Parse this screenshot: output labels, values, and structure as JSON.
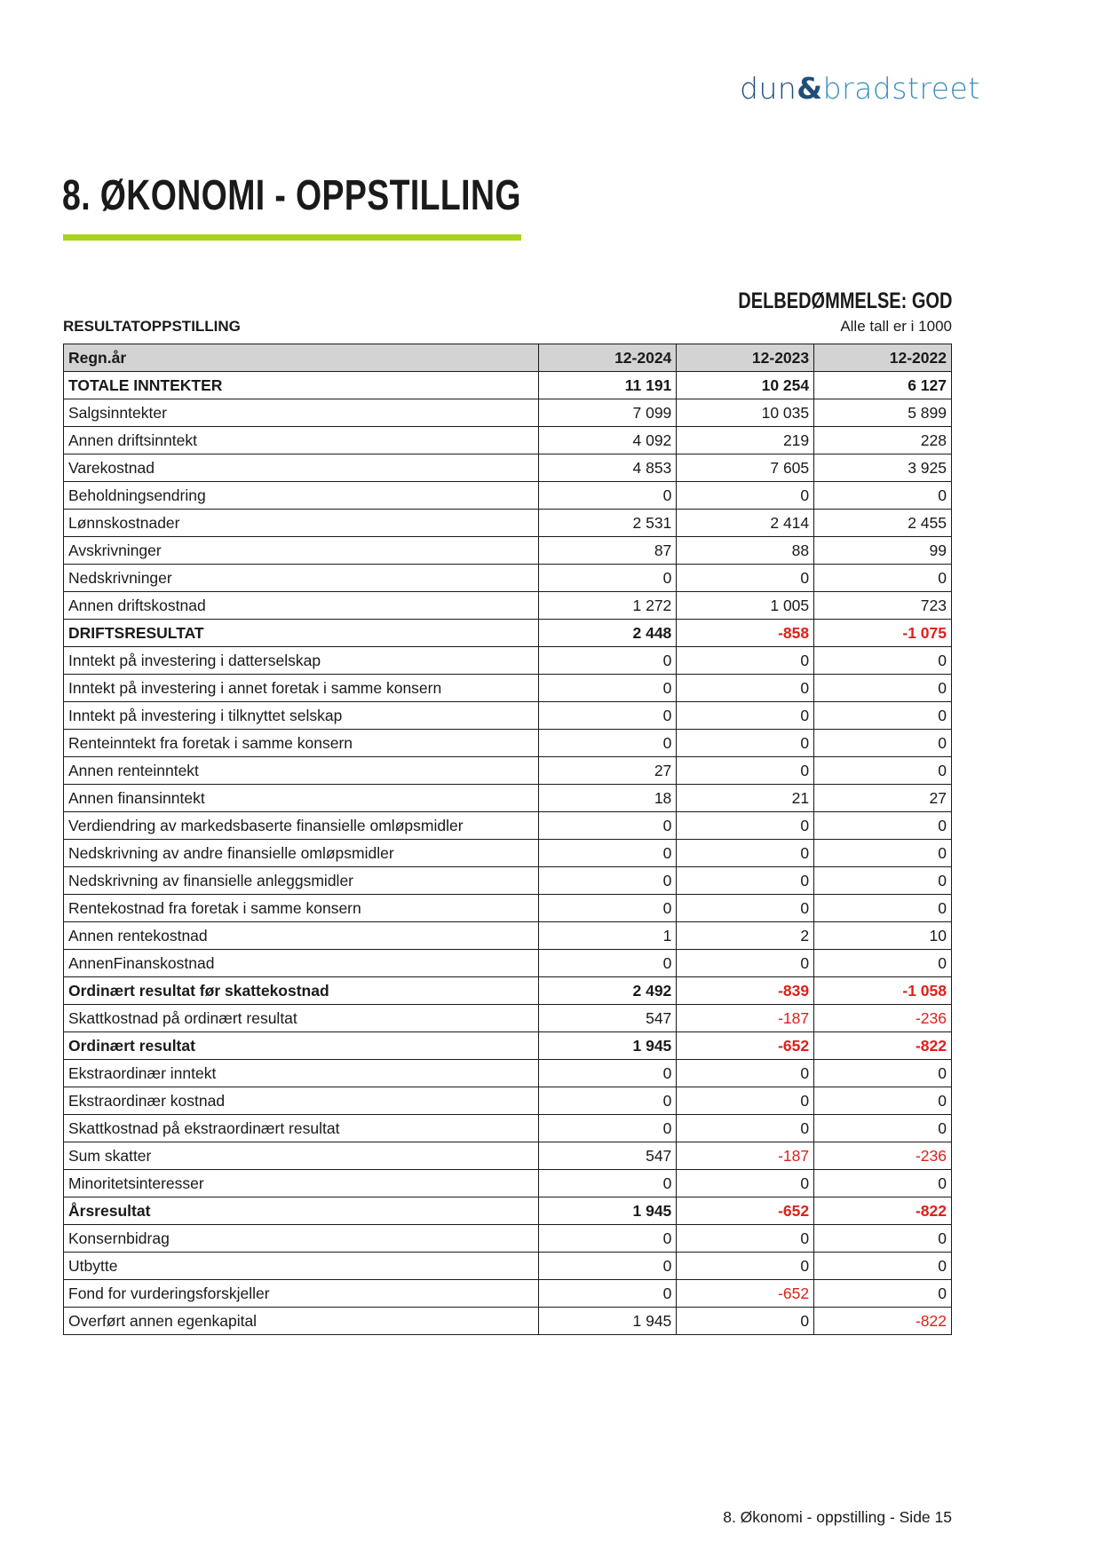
{
  "logo": {
    "part1": "dun",
    "amp": "&",
    "part2": "bradstreet"
  },
  "title": "8. ØKONOMI - OPPSTILLING",
  "rating": "DELBEDØMMELSE: GOD",
  "section": "RESULTATOPPSTILLING",
  "unit_note": "Alle tall er i 1000",
  "accent_color": "#a8d41c",
  "negative_color": "#e0201a",
  "table": {
    "headers": [
      "Regn.år",
      "12-2024",
      "12-2023",
      "12-2022"
    ],
    "rows": [
      {
        "label": "TOTALE INNTEKTER",
        "bold": true,
        "values": [
          "11 191",
          "10 254",
          "6 127"
        ]
      },
      {
        "label": "Salgsinntekter",
        "values": [
          "7 099",
          "10 035",
          "5 899"
        ]
      },
      {
        "label": "Annen driftsinntekt",
        "values": [
          "4 092",
          "219",
          "228"
        ]
      },
      {
        "label": "Varekostnad",
        "values": [
          "4 853",
          "7 605",
          "3 925"
        ]
      },
      {
        "label": "Beholdningsendring",
        "values": [
          "0",
          "0",
          "0"
        ]
      },
      {
        "label": "Lønnskostnader",
        "values": [
          "2 531",
          "2 414",
          "2 455"
        ]
      },
      {
        "label": "Avskrivninger",
        "values": [
          "87",
          "88",
          "99"
        ]
      },
      {
        "label": "Nedskrivninger",
        "values": [
          "0",
          "0",
          "0"
        ]
      },
      {
        "label": "Annen driftskostnad",
        "values": [
          "1 272",
          "1 005",
          "723"
        ]
      },
      {
        "label": "DRIFTSRESULTAT",
        "bold": true,
        "values": [
          "2 448",
          "-858",
          "-1 075"
        ]
      },
      {
        "label": "Inntekt på investering i datterselskap",
        "values": [
          "0",
          "0",
          "0"
        ]
      },
      {
        "label": "Inntekt på investering i annet foretak i samme konsern",
        "values": [
          "0",
          "0",
          "0"
        ]
      },
      {
        "label": "Inntekt på investering i tilknyttet selskap",
        "values": [
          "0",
          "0",
          "0"
        ]
      },
      {
        "label": "Renteinntekt fra foretak i samme konsern",
        "values": [
          "0",
          "0",
          "0"
        ]
      },
      {
        "label": "Annen renteinntekt",
        "values": [
          "27",
          "0",
          "0"
        ]
      },
      {
        "label": "Annen finansinntekt",
        "values": [
          "18",
          "21",
          "27"
        ]
      },
      {
        "label": "Verdiendring av markedsbaserte finansielle omløpsmidler",
        "values": [
          "0",
          "0",
          "0"
        ]
      },
      {
        "label": "Nedskrivning av andre finansielle omløpsmidler",
        "values": [
          "0",
          "0",
          "0"
        ]
      },
      {
        "label": "Nedskrivning av finansielle anleggsmidler",
        "values": [
          "0",
          "0",
          "0"
        ]
      },
      {
        "label": "Rentekostnad fra foretak i samme konsern",
        "values": [
          "0",
          "0",
          "0"
        ]
      },
      {
        "label": "Annen rentekostnad",
        "values": [
          "1",
          "2",
          "10"
        ]
      },
      {
        "label": "AnnenFinanskostnad",
        "values": [
          "0",
          "0",
          "0"
        ]
      },
      {
        "label": "Ordinært resultat før skattekostnad",
        "bold": true,
        "values": [
          "2 492",
          "-839",
          "-1 058"
        ]
      },
      {
        "label": "Skattkostnad på ordinært resultat",
        "values": [
          "547",
          "-187",
          "-236"
        ]
      },
      {
        "label": "Ordinært resultat",
        "bold": true,
        "values": [
          "1 945",
          "-652",
          "-822"
        ]
      },
      {
        "label": "Ekstraordinær inntekt",
        "values": [
          "0",
          "0",
          "0"
        ]
      },
      {
        "label": "Ekstraordinær kostnad",
        "values": [
          "0",
          "0",
          "0"
        ]
      },
      {
        "label": "Skattkostnad på ekstraordinært resultat",
        "values": [
          "0",
          "0",
          "0"
        ]
      },
      {
        "label": "Sum skatter",
        "values": [
          "547",
          "-187",
          "-236"
        ]
      },
      {
        "label": "Minoritetsinteresser",
        "values": [
          "0",
          "0",
          "0"
        ]
      },
      {
        "label": "Årsresultat",
        "bold": true,
        "values": [
          "1 945",
          "-652",
          "-822"
        ]
      },
      {
        "label": "Konsernbidrag",
        "values": [
          "0",
          "0",
          "0"
        ]
      },
      {
        "label": "Utbytte",
        "values": [
          "0",
          "0",
          "0"
        ]
      },
      {
        "label": "Fond for vurderingsforskjeller",
        "values": [
          "0",
          "-652",
          "0"
        ]
      },
      {
        "label": "Overført annen egenkapital",
        "values": [
          "1 945",
          "0",
          "-822"
        ]
      }
    ]
  },
  "footer": "8. Økonomi - oppstilling - Side 15"
}
